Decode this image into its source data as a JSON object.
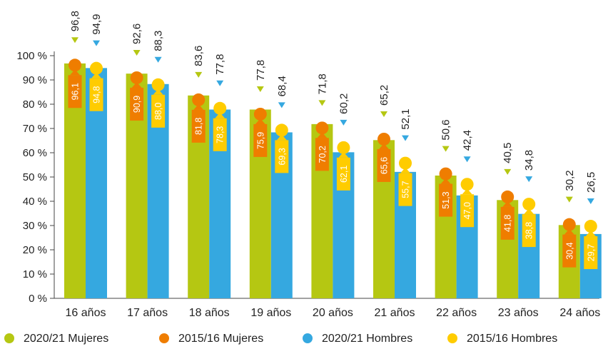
{
  "chart_data": {
    "type": "bar",
    "categories": [
      "16 años",
      "17 años",
      "18 años",
      "19 años",
      "20 años",
      "21 años",
      "22 años",
      "23 años",
      "24 años"
    ],
    "series": [
      {
        "name": "2020/21 Mujeres",
        "values": [
          96.8,
          92.6,
          83.6,
          77.8,
          71.8,
          65.2,
          50.6,
          40.5,
          30.2
        ],
        "labels": [
          "96,8",
          "92,6",
          "83,6",
          "77,8",
          "71,8",
          "65,2",
          "50,6",
          "40,5",
          "30,2"
        ],
        "color": "#b5c712"
      },
      {
        "name": "2015/16 Mujeres",
        "values": [
          96.1,
          90.9,
          81.8,
          75.9,
          70.2,
          65.6,
          51.3,
          41.8,
          30.4
        ],
        "labels": [
          "96,1",
          "90,9",
          "81,8",
          "75,9",
          "70,2",
          "65,6",
          "51,3",
          "41,8",
          "30,4"
        ],
        "color": "#ef7d00"
      },
      {
        "name": "2020/21 Hombres",
        "values": [
          94.9,
          88.3,
          77.8,
          68.4,
          60.2,
          52.1,
          42.4,
          34.8,
          26.5
        ],
        "labels": [
          "94,9",
          "88,3",
          "77,8",
          "68,4",
          "60,2",
          "52,1",
          "42,4",
          "34,8",
          "26,5"
        ],
        "color": "#35a8e0"
      },
      {
        "name": "2015/16 Hombres",
        "values": [
          94.8,
          88.0,
          78.3,
          69.3,
          62.1,
          55.7,
          47.0,
          38.8,
          29.7
        ],
        "labels": [
          "94,8",
          "88,0",
          "78,3",
          "69,3",
          "62,1",
          "55,7",
          "47,0",
          "38,8",
          "29,7"
        ],
        "color": "#ffcc00"
      }
    ],
    "y_ticks": [
      "0 %",
      "10 %",
      "20 %",
      "30 %",
      "40 %",
      "50 %",
      "60 %",
      "70 %",
      "80 %",
      "90 %",
      "100 %"
    ],
    "ylim": [
      0,
      100
    ],
    "legend_position": "bottom",
    "grid": false
  }
}
